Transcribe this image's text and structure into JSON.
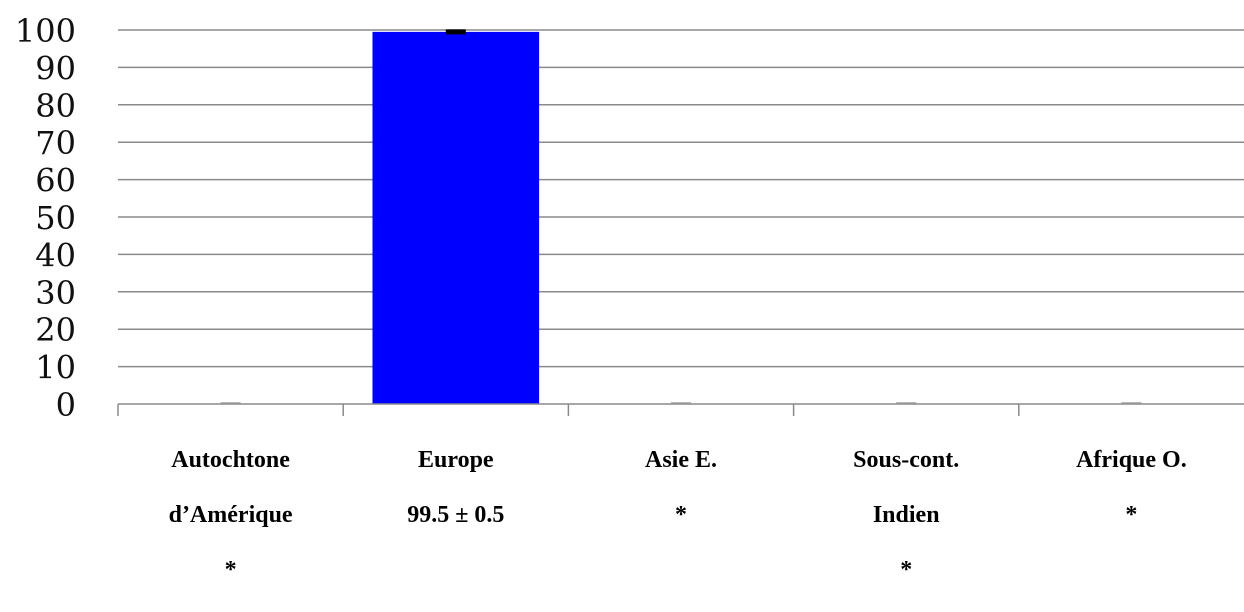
{
  "chart_data": {
    "type": "bar",
    "title": "",
    "xlabel": "",
    "ylabel": "",
    "ylim": [
      0,
      100
    ],
    "yticks": [
      0,
      10,
      20,
      30,
      40,
      50,
      60,
      70,
      80,
      90,
      100
    ],
    "grid": true,
    "legend": "none",
    "bar_color": "#0000ff",
    "categories": [
      {
        "lines": [
          "Autochtone",
          "d’Amérique",
          "*"
        ],
        "value": 0,
        "error": 0
      },
      {
        "lines": [
          "Europe",
          "99.5 ± 0.5"
        ],
        "value": 99.5,
        "error": 0.5
      },
      {
        "lines": [
          "Asie E.",
          "*"
        ],
        "value": 0,
        "error": 0
      },
      {
        "lines": [
          "Sous-cont.",
          "Indien",
          "*"
        ],
        "value": 0,
        "error": 0
      },
      {
        "lines": [
          "Afrique O.",
          "*"
        ],
        "value": 0,
        "error": 0
      }
    ]
  }
}
